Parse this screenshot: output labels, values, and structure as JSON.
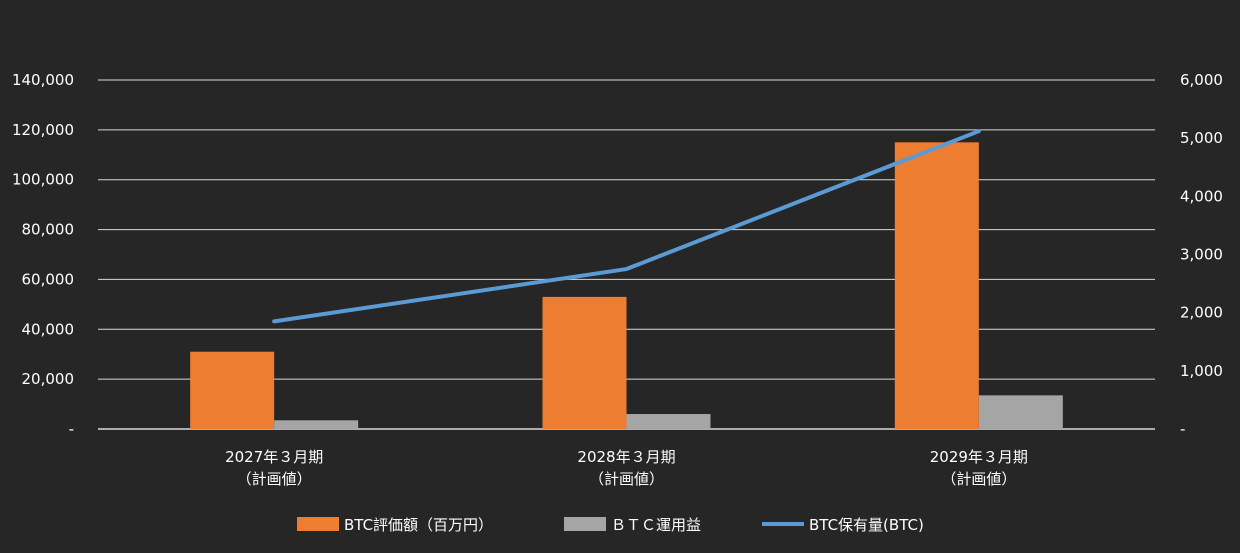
{
  "chart_data": {
    "type": "bar",
    "categories": [
      [
        "2027年３月期",
        "（計画値）"
      ],
      [
        "2028年３月期",
        "（計画値）"
      ],
      [
        "2029年３月期",
        "（計画値）"
      ]
    ],
    "series": [
      {
        "name": "BTC評価額（百万円）",
        "kind": "bar",
        "axis": "left",
        "color": "#ED7D31",
        "values": [
          31000,
          53000,
          115000
        ]
      },
      {
        "name": "ＢＴＣ運用益",
        "kind": "bar",
        "axis": "left",
        "color": "#A5A5A5",
        "values": [
          3500,
          6000,
          13500
        ]
      },
      {
        "name": "BTC保有量(BTC)",
        "kind": "line",
        "axis": "right",
        "color": "#5B9BD5",
        "values": [
          1850,
          2750,
          5120
        ]
      }
    ],
    "y_left": {
      "min": 0,
      "max": 140000,
      "ticks": [
        0,
        20000,
        40000,
        60000,
        80000,
        100000,
        120000,
        140000
      ],
      "tick_labels": [
        "-",
        "20,000",
        "40,000",
        "60,000",
        "80,000",
        "100,000",
        "120,000",
        "140,000"
      ]
    },
    "y_right": {
      "min": 0,
      "max": 6000,
      "ticks": [
        0,
        1000,
        2000,
        3000,
        4000,
        5000,
        6000
      ],
      "tick_labels": [
        "-",
        "1,000",
        "2,000",
        "3,000",
        "4,000",
        "5,000",
        "6,000"
      ]
    },
    "grid": true,
    "legend_position": "bottom",
    "colors": {
      "background": "#262626",
      "grid": "#d9d9d9",
      "axis": "#d9d9d9",
      "text": "#ffffff"
    }
  }
}
